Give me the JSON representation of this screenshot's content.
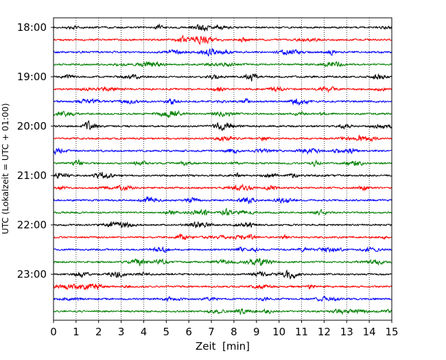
{
  "chart_data": {
    "type": "line",
    "title": "",
    "xlabel": "Zeit  [min]",
    "ylabel": "UTC (Lokalzeit = UTC + 01:00)",
    "xlim": [
      0,
      15
    ],
    "x_ticks": [
      0,
      1,
      2,
      3,
      4,
      5,
      6,
      7,
      8,
      9,
      10,
      11,
      12,
      13,
      14,
      15
    ],
    "y_tick_labels": [
      "18:00",
      "19:00",
      "20:00",
      "21:00",
      "22:00",
      "23:00"
    ],
    "grid": "vertical dotted lines at each minute",
    "trace_colors": [
      "#000000",
      "#ff0000",
      "#0000ff",
      "#008000"
    ],
    "series": [
      {
        "start": "18:00",
        "color": "#000000"
      },
      {
        "start": "18:15",
        "color": "#ff0000"
      },
      {
        "start": "18:30",
        "color": "#0000ff"
      },
      {
        "start": "18:45",
        "color": "#008000"
      },
      {
        "start": "19:00",
        "color": "#000000"
      },
      {
        "start": "19:15",
        "color": "#ff0000"
      },
      {
        "start": "19:30",
        "color": "#0000ff"
      },
      {
        "start": "19:45",
        "color": "#008000"
      },
      {
        "start": "20:00",
        "color": "#000000"
      },
      {
        "start": "20:15",
        "color": "#ff0000"
      },
      {
        "start": "20:30",
        "color": "#0000ff"
      },
      {
        "start": "20:45",
        "color": "#008000"
      },
      {
        "start": "21:00",
        "color": "#000000"
      },
      {
        "start": "21:15",
        "color": "#ff0000"
      },
      {
        "start": "21:30",
        "color": "#0000ff"
      },
      {
        "start": "21:45",
        "color": "#008000"
      },
      {
        "start": "22:00",
        "color": "#000000"
      },
      {
        "start": "22:15",
        "color": "#ff0000"
      },
      {
        "start": "22:30",
        "color": "#0000ff"
      },
      {
        "start": "22:45",
        "color": "#008000"
      },
      {
        "start": "23:00",
        "color": "#000000"
      },
      {
        "start": "23:15",
        "color": "#ff0000"
      },
      {
        "start": "23:30",
        "color": "#0000ff"
      },
      {
        "start": "23:45",
        "color": "#008000"
      }
    ]
  }
}
